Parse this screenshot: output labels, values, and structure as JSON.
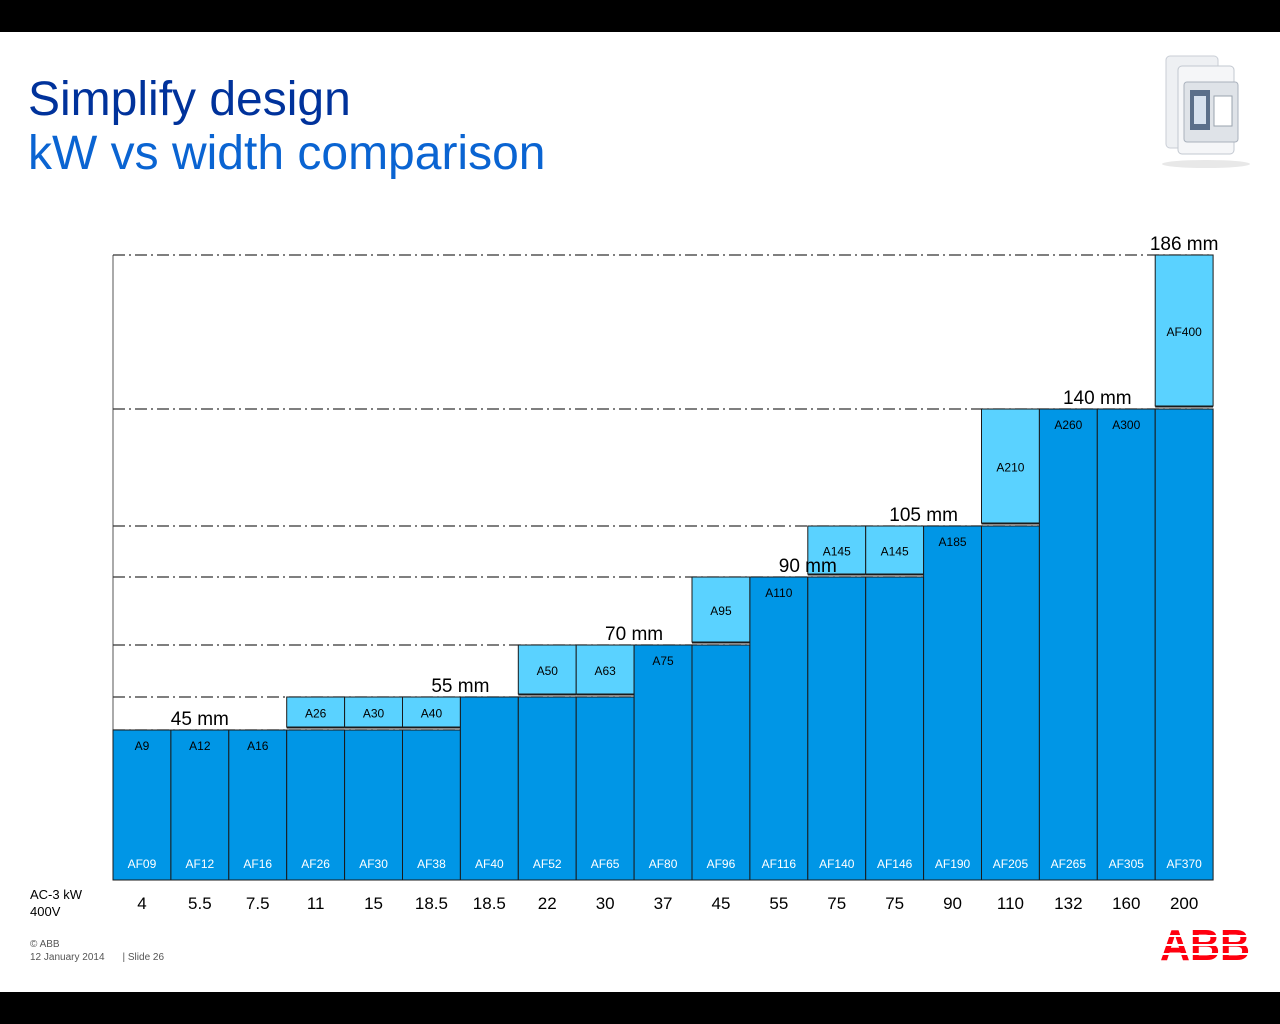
{
  "title": {
    "line1": "Simplify design",
    "line2": "kW vs width comparison"
  },
  "chart_data": {
    "type": "bar",
    "xlabel": "AC-3 kW 400V",
    "axis_label_lines": [
      "AC-3 kW",
      "400V"
    ],
    "categories": [
      "4",
      "5.5",
      "7.5",
      "11",
      "15",
      "18.5",
      "18.5",
      "22",
      "30",
      "37",
      "45",
      "55",
      "75",
      "75",
      "90",
      "110",
      "132",
      "160",
      "200"
    ],
    "series": [
      {
        "unit": "mm",
        "af_models": [
          "AF09",
          "AF12",
          "AF16",
          "AF26",
          "AF30",
          "AF38",
          "AF40",
          "AF52",
          "AF65",
          "AF80",
          "AF96",
          "AF116",
          "AF140",
          "AF146",
          "AF190",
          "AF205",
          "AF265",
          "AF305",
          "AF370"
        ],
        "af_widths": [
          45,
          45,
          45,
          45,
          45,
          45,
          55,
          55,
          55,
          70,
          70,
          90,
          90,
          90,
          105,
          105,
          140,
          140,
          140
        ]
      },
      {
        "unit": "mm",
        "a_models": [
          "A9",
          "A12",
          "A16",
          "A26",
          "A30",
          "A40",
          null,
          "A50",
          "A63",
          "A75",
          "A95",
          "A110",
          "A145",
          "A145",
          "A185",
          "A210",
          "A260",
          "A300",
          "AF400"
        ],
        "a_widths": [
          45,
          45,
          45,
          55,
          55,
          55,
          null,
          70,
          70,
          70,
          90,
          90,
          105,
          105,
          105,
          140,
          140,
          140,
          186
        ]
      }
    ],
    "reference_widths": [
      {
        "value": 45,
        "label": "45 mm"
      },
      {
        "value": 55,
        "label": "55 mm"
      },
      {
        "value": 70,
        "label": "70 mm"
      },
      {
        "value": 90,
        "label": "90 mm"
      },
      {
        "value": 105,
        "label": "105 mm"
      },
      {
        "value": 140,
        "label": "140 mm"
      },
      {
        "value": 186,
        "label": "186 mm"
      }
    ],
    "ylim": [
      0,
      186
    ],
    "colors": {
      "af": "#0096e6",
      "a": "#5ad2ff",
      "text": "#000000"
    }
  },
  "footer": {
    "copyright": "© ABB",
    "date": "12 January 2014",
    "slide": "| Slide 26"
  },
  "logo": {
    "text": "ABB",
    "color": "#ff000f"
  },
  "icons": {
    "product": "contactor-product-icon"
  }
}
